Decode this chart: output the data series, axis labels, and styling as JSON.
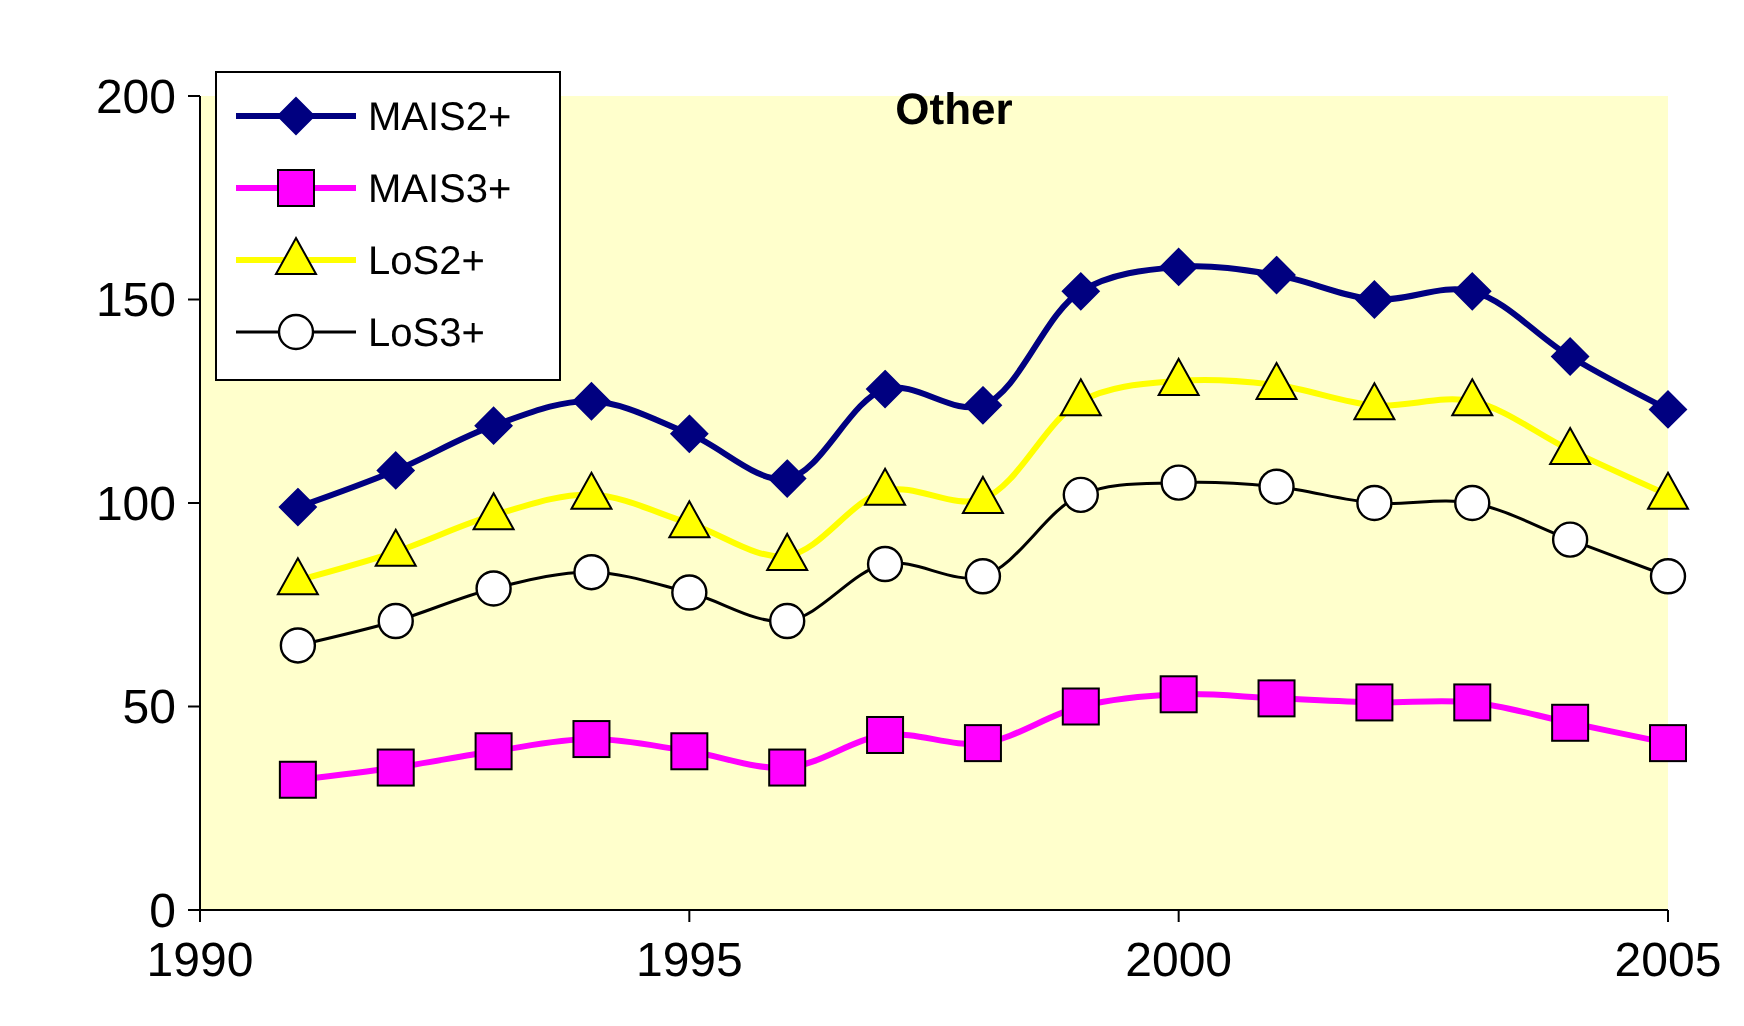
{
  "chart_data": {
    "type": "line",
    "title": "Other",
    "x": [
      1991,
      1992,
      1993,
      1994,
      1995,
      1996,
      1997,
      1998,
      1999,
      2000,
      2001,
      2002,
      2003,
      2004,
      2005
    ],
    "series": [
      {
        "name": "MAIS2+",
        "color": "#000080",
        "marker": "diamond",
        "values": [
          99,
          108,
          119,
          125,
          117,
          106,
          128,
          124,
          152,
          158,
          156,
          150,
          152,
          136,
          123
        ]
      },
      {
        "name": "MAIS3+",
        "color": "#ff00ff",
        "marker": "square",
        "values": [
          32,
          35,
          39,
          42,
          39,
          35,
          43,
          41,
          50,
          53,
          52,
          51,
          51,
          46,
          41
        ]
      },
      {
        "name": "LoS2+",
        "color": "#ffff00",
        "marker": "triangle",
        "values": [
          81,
          88,
          97,
          102,
          95,
          87,
          103,
          101,
          125,
          130,
          129,
          124,
          125,
          113,
          102
        ]
      },
      {
        "name": "LoS3+",
        "color": "#000000",
        "marker": "circle",
        "values": [
          65,
          71,
          79,
          83,
          78,
          71,
          85,
          82,
          102,
          105,
          104,
          100,
          100,
          91,
          82
        ]
      }
    ],
    "xlim": [
      1990,
      2005
    ],
    "xticks": [
      1990,
      1995,
      2000,
      2005
    ],
    "ylim": [
      0,
      200
    ],
    "yticks": [
      0,
      50,
      100,
      150,
      200
    ],
    "grid": false,
    "legend": "top left"
  }
}
